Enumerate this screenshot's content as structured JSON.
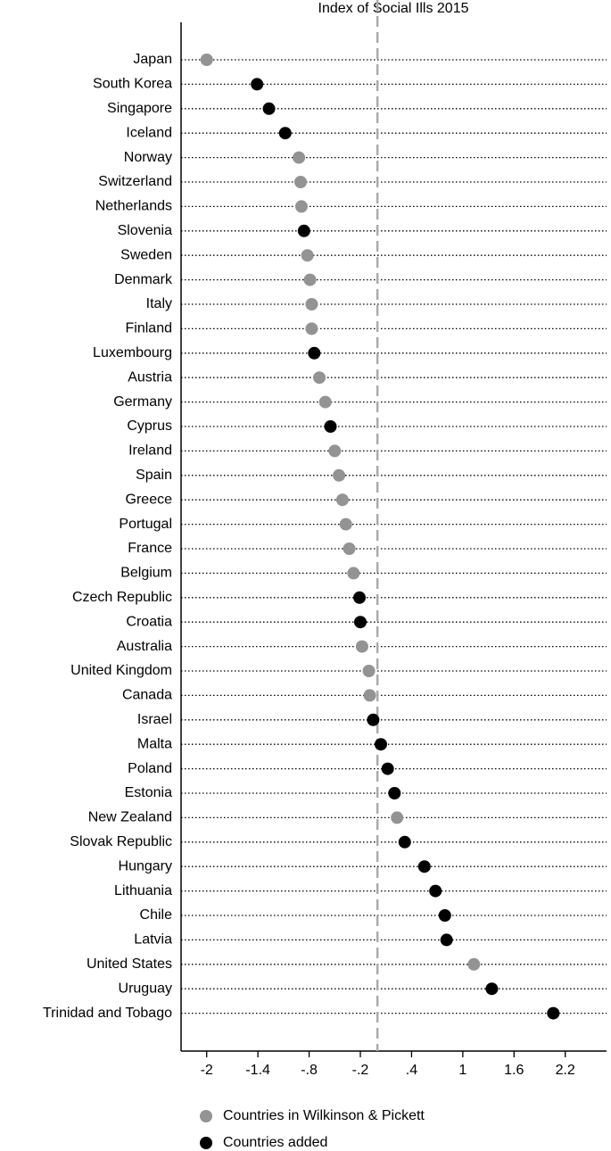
{
  "chart_data": {
    "type": "dot",
    "title": "Index of Social Ills 2015",
    "categories": [
      "Japan",
      "South Korea",
      "Singapore",
      "Iceland",
      "Norway",
      "Switzerland",
      "Netherlands",
      "Slovenia",
      "Sweden",
      "Denmark",
      "Italy",
      "Finland",
      "Luxembourg",
      "Austria",
      "Germany",
      "Cyprus",
      "Ireland",
      "Spain",
      "Greece",
      "Portugal",
      "France",
      "Belgium",
      "Czech Republic",
      "Croatia",
      "Australia",
      "United Kingdom",
      "Canada",
      "Israel",
      "Malta",
      "Poland",
      "Estonia",
      "New Zealand",
      "Slovak Republic",
      "Hungary",
      "Lithuania",
      "Chile",
      "Latvia",
      "United States",
      "Uruguay",
      "Trinidad and Tobago"
    ],
    "series": [
      {
        "name": "Countries in Wilkinson & Pickett",
        "color": "#939393",
        "values": [
          -2.0,
          null,
          null,
          null,
          -0.92,
          -0.9,
          -0.89,
          null,
          -0.82,
          -0.79,
          -0.77,
          -0.77,
          null,
          -0.68,
          -0.61,
          null,
          -0.5,
          -0.45,
          -0.41,
          -0.37,
          -0.33,
          -0.28,
          null,
          null,
          -0.18,
          -0.1,
          -0.09,
          null,
          null,
          null,
          null,
          0.23,
          null,
          null,
          null,
          null,
          null,
          1.13,
          null,
          null
        ]
      },
      {
        "name": "Countries added",
        "color": "#000000",
        "values": [
          null,
          -1.41,
          -1.27,
          -1.08,
          null,
          null,
          null,
          -0.86,
          null,
          null,
          null,
          null,
          -0.74,
          null,
          null,
          -0.55,
          null,
          null,
          null,
          null,
          null,
          null,
          -0.21,
          -0.2,
          null,
          null,
          null,
          -0.05,
          0.04,
          0.12,
          0.2,
          null,
          0.32,
          0.55,
          0.68,
          0.79,
          0.81,
          null,
          1.34,
          2.06
        ]
      }
    ],
    "xlim": [
      -2.3,
      2.6
    ],
    "xticks": [
      -2,
      -1.4,
      {
        "value": -0.8,
        "label": "-.8"
      },
      {
        "value": -0.2,
        "label": "-.2"
      },
      {
        "value": 0.4,
        "label": ".4"
      },
      1,
      1.6,
      2.2
    ],
    "reference_line": 0,
    "legend": "bottom"
  }
}
